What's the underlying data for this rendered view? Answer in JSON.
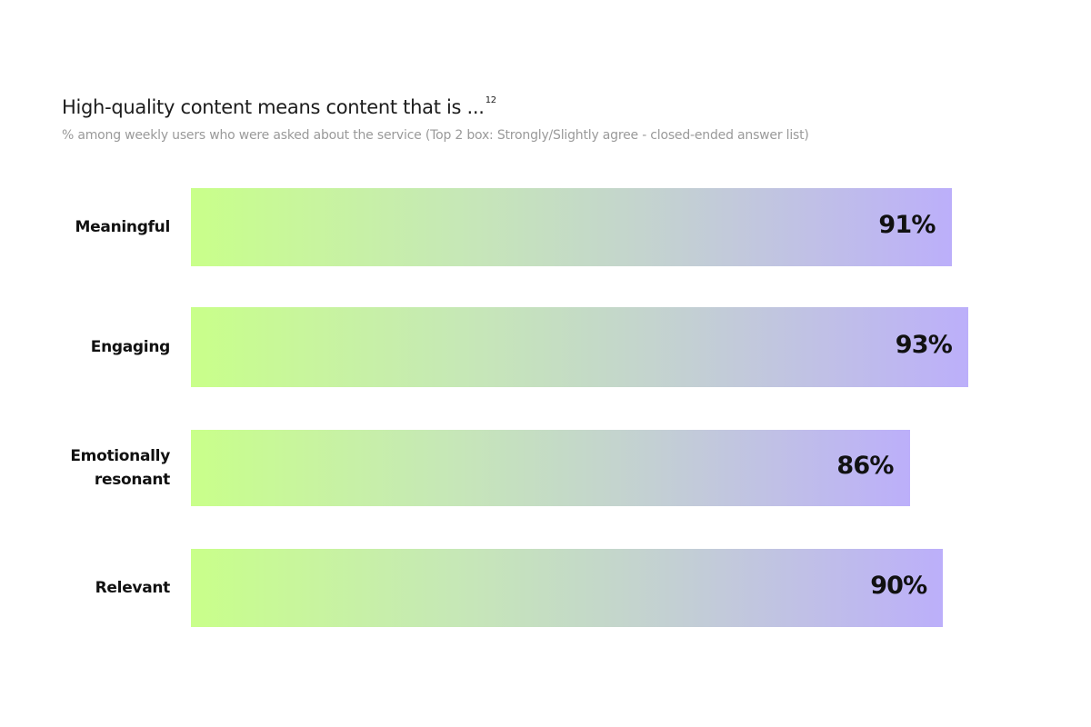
{
  "chart_data": {
    "type": "bar",
    "orientation": "horizontal",
    "title": "High-quality content means content that is ...",
    "title_superscript": "12",
    "subtitle": "% among weekly users who were asked about the service (Top 2 box: Strongly/Slightly agree - closed-ended answer list)",
    "categories": [
      [
        "Meaningful"
      ],
      [
        "Engaging"
      ],
      [
        "Emotionally",
        "resonant"
      ],
      [
        "Relevant"
      ]
    ],
    "values": [
      91,
      93,
      86,
      90
    ],
    "value_labels": [
      "91%",
      "93%",
      "86%",
      "90%"
    ],
    "xlim": [
      0,
      100
    ],
    "grid": false,
    "legend": "none",
    "colors": {
      "gradient_start": "#c9ff8a",
      "gradient_mid": "#c3d8c8",
      "gradient_end": "#bcaffa",
      "text": "#111111",
      "subtitle": "#9a9a9a"
    }
  }
}
